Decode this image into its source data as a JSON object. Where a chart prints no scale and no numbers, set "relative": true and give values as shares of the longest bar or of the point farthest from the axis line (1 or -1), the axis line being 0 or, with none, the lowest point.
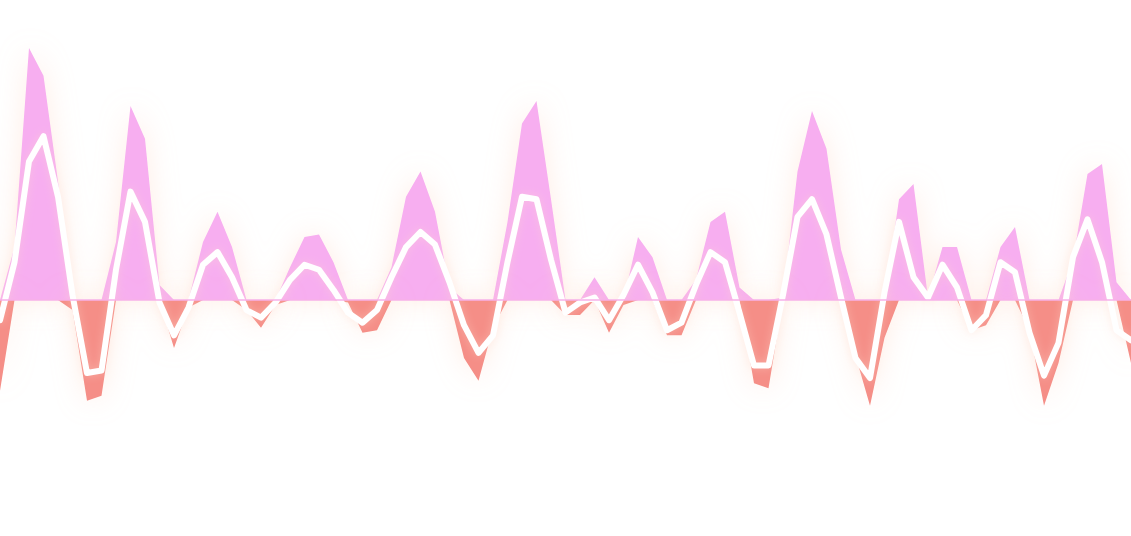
{
  "chart_data": {
    "type": "area",
    "relative": true,
    "categories": [
      null,
      null,
      null,
      null,
      null,
      null,
      null,
      null,
      null,
      null,
      null,
      null,
      null,
      null,
      null,
      null,
      null,
      null,
      null,
      null,
      null,
      null,
      null,
      null,
      null,
      null,
      null,
      null,
      null,
      null,
      null,
      null,
      null,
      null,
      null,
      null,
      null,
      null,
      null,
      null,
      null,
      null,
      null,
      null,
      null,
      null,
      null,
      null,
      null,
      null,
      null,
      null,
      null,
      null,
      null,
      null,
      null,
      null,
      null,
      null,
      null,
      null,
      null,
      null,
      null,
      null,
      null,
      null,
      null,
      null,
      null,
      null,
      null,
      null,
      null,
      null,
      null,
      null,
      null
    ],
    "series": [
      {
        "color": "#f7aef0",
        "values": [
          0,
          0.21,
          1.0,
          0.89,
          0.47,
          0,
          0,
          0,
          0.23,
          0.77,
          0.64,
          0.06,
          0,
          0,
          0.23,
          0.35,
          0.21,
          0,
          0,
          0,
          0.13,
          0.25,
          0.26,
          0.15,
          0,
          0,
          0,
          0.13,
          0.41,
          0.51,
          0.35,
          0.05,
          0,
          0,
          0,
          0.31,
          0.7,
          0.79,
          0.4,
          0,
          0,
          0.09,
          0,
          0,
          0.25,
          0.17,
          0,
          0,
          0.08,
          0.31,
          0.35,
          0.05,
          0,
          0,
          0.01,
          0.51,
          0.75,
          0.6,
          0.2,
          0,
          0,
          0,
          0.4,
          0.46,
          0.01,
          0.21,
          0.21,
          0,
          0,
          0.21,
          0.29,
          0,
          0,
          0,
          0.16,
          0.5,
          0.54,
          0.07,
          0
        ]
      },
      {
        "color": "#f58e87",
        "values": [
          -0.36,
          0,
          0,
          0,
          0,
          -0.04,
          -0.4,
          -0.38,
          0,
          0,
          0,
          0,
          -0.19,
          -0.03,
          0,
          0,
          0,
          -0.04,
          -0.11,
          -0.02,
          0,
          0,
          0,
          0,
          -0.01,
          -0.13,
          -0.12,
          0,
          0,
          0,
          0,
          0,
          -0.23,
          -0.32,
          -0.11,
          0,
          0,
          0,
          0,
          -0.06,
          -0.06,
          0,
          -0.13,
          -0.02,
          0,
          0,
          -0.14,
          -0.14,
          0,
          0,
          0,
          0,
          -0.33,
          -0.35,
          0,
          0,
          0,
          0,
          0,
          -0.22,
          -0.42,
          -0.15,
          0,
          0,
          0,
          0,
          0,
          -0.12,
          -0.1,
          0,
          0,
          -0.12,
          -0.42,
          -0.25,
          0,
          0,
          0,
          0,
          -0.25
        ]
      },
      {
        "type": "line",
        "color": "#ffffff",
        "values": [
          -0.08,
          0.15,
          0.55,
          0.65,
          0.41,
          0.02,
          -0.29,
          -0.28,
          0.12,
          0.43,
          0.31,
          -0.01,
          -0.14,
          -0.03,
          0.14,
          0.19,
          0.09,
          -0.04,
          -0.07,
          -0.01,
          0.08,
          0.14,
          0.12,
          0.04,
          -0.05,
          -0.09,
          -0.04,
          0.09,
          0.21,
          0.27,
          0.22,
          0.07,
          -0.1,
          -0.21,
          -0.14,
          0.15,
          0.41,
          0.4,
          0.16,
          -0.05,
          -0.01,
          0.01,
          -0.08,
          0.02,
          0.14,
          0.03,
          -0.12,
          -0.09,
          0.06,
          0.19,
          0.15,
          -0.05,
          -0.26,
          -0.26,
          0.02,
          0.33,
          0.4,
          0.26,
          0.01,
          -0.23,
          -0.31,
          0.03,
          0.31,
          0.09,
          0.01,
          0.14,
          0.05,
          -0.12,
          -0.06,
          0.15,
          0.11,
          -0.13,
          -0.3,
          -0.17,
          0.17,
          0.32,
          0.15,
          -0.12,
          -0.16
        ]
      }
    ]
  }
}
